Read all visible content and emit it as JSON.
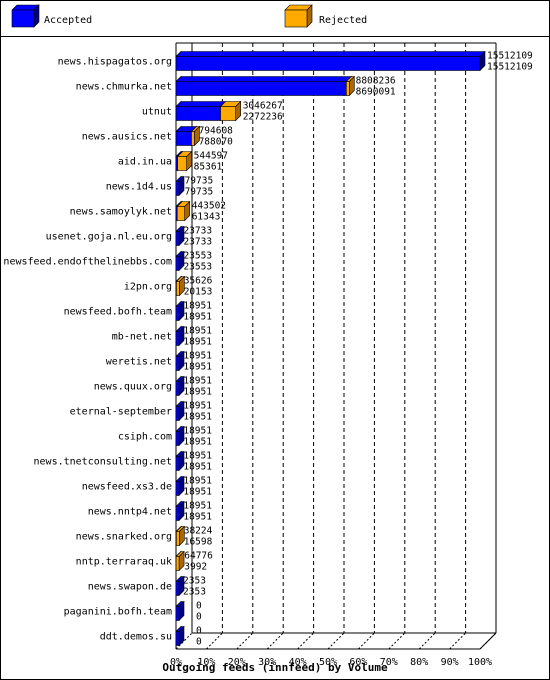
{
  "chart_data": {
    "type": "bar",
    "title": "Outgoing feeds (innfeed) by Volume",
    "orientation": "horizontal",
    "stacking": "overlaid",
    "xlim": [
      0,
      100
    ],
    "x_unit": "%",
    "x_ticks": [
      "0%",
      "10%",
      "20%",
      "30%",
      "40%",
      "50%",
      "60%",
      "70%",
      "80%",
      "90%",
      "100%"
    ],
    "legend_position": "top",
    "grid": true,
    "colors": {
      "accepted": "#0000ff",
      "rejected": "#ffaa00",
      "accepted_dark": "#000080",
      "rejected_dark": "#aa6600"
    },
    "series": [
      {
        "name": "Accepted",
        "key": "accepted"
      },
      {
        "name": "Rejected",
        "key": "rejected"
      }
    ],
    "rows": [
      {
        "label": "news.hispagatos.org",
        "offered": "15512109",
        "accepted": "15512109",
        "offered_value": 15512109,
        "accepted_value": 15512109
      },
      {
        "label": "news.chmurka.net",
        "offered": "8808236",
        "accepted": "8690091",
        "offered_value": 8808236,
        "accepted_value": 8690091
      },
      {
        "label": "utnut",
        "offered": "3046267",
        "accepted": "2272236",
        "offered_value": 3046267,
        "accepted_value": 2272236
      },
      {
        "label": "news.ausics.net",
        "offered": "794608",
        "accepted": "788070",
        "offered_value": 794608,
        "accepted_value": 788070
      },
      {
        "label": "aid.in.ua",
        "offered": "544597",
        "accepted": "85361",
        "offered_value": 544597,
        "accepted_value": 85361
      },
      {
        "label": "news.1d4.us",
        "offered": "79735",
        "accepted": "79735",
        "offered_value": 79735,
        "accepted_value": 79735
      },
      {
        "label": "news.samoylyk.net",
        "offered": "443502",
        "accepted": "61343",
        "offered_value": 443502,
        "accepted_value": 61343
      },
      {
        "label": "usenet.goja.nl.eu.org",
        "offered": "23733",
        "accepted": "23733",
        "offered_value": 23733,
        "accepted_value": 23733
      },
      {
        "label": "newsfeed.endofthelinebbs.com",
        "offered": "23553",
        "accepted": "23553",
        "offered_value": 23553,
        "accepted_value": 23553
      },
      {
        "label": "i2pn.org",
        "offered": "35626",
        "accepted": "20153",
        "offered_value": 35626,
        "accepted_value": 20153
      },
      {
        "label": "newsfeed.bofh.team",
        "offered": "18951",
        "accepted": "18951",
        "offered_value": 18951,
        "accepted_value": 18951
      },
      {
        "label": "mb-net.net",
        "offered": "18951",
        "accepted": "18951",
        "offered_value": 18951,
        "accepted_value": 18951
      },
      {
        "label": "weretis.net",
        "offered": "18951",
        "accepted": "18951",
        "offered_value": 18951,
        "accepted_value": 18951
      },
      {
        "label": "news.quux.org",
        "offered": "18951",
        "accepted": "18951",
        "offered_value": 18951,
        "accepted_value": 18951
      },
      {
        "label": "eternal-september",
        "offered": "18951",
        "accepted": "18951",
        "offered_value": 18951,
        "accepted_value": 18951
      },
      {
        "label": "csiph.com",
        "offered": "18951",
        "accepted": "18951",
        "offered_value": 18951,
        "accepted_value": 18951
      },
      {
        "label": "news.tnetconsulting.net",
        "offered": "18951",
        "accepted": "18951",
        "offered_value": 18951,
        "accepted_value": 18951
      },
      {
        "label": "newsfeed.xs3.de",
        "offered": "18951",
        "accepted": "18951",
        "offered_value": 18951,
        "accepted_value": 18951
      },
      {
        "label": "news.nntp4.net",
        "offered": "18951",
        "accepted": "18951",
        "offered_value": 18951,
        "accepted_value": 18951
      },
      {
        "label": "news.snarked.org",
        "offered": "38224",
        "accepted": "16598",
        "offered_value": 38224,
        "accepted_value": 16598
      },
      {
        "label": "nntp.terraraq.uk",
        "offered": "64776",
        "accepted": "3992",
        "offered_value": 64776,
        "accepted_value": 3992
      },
      {
        "label": "news.swapon.de",
        "offered": "2353",
        "accepted": "2353",
        "offered_value": 2353,
        "accepted_value": 2353
      },
      {
        "label": "paganini.bofh.team",
        "offered": "0",
        "accepted": "0",
        "offered_value": 0,
        "accepted_value": 0
      },
      {
        "label": "ddt.demos.su",
        "offered": "0",
        "accepted": "0",
        "offered_value": 0,
        "accepted_value": 0
      }
    ]
  }
}
